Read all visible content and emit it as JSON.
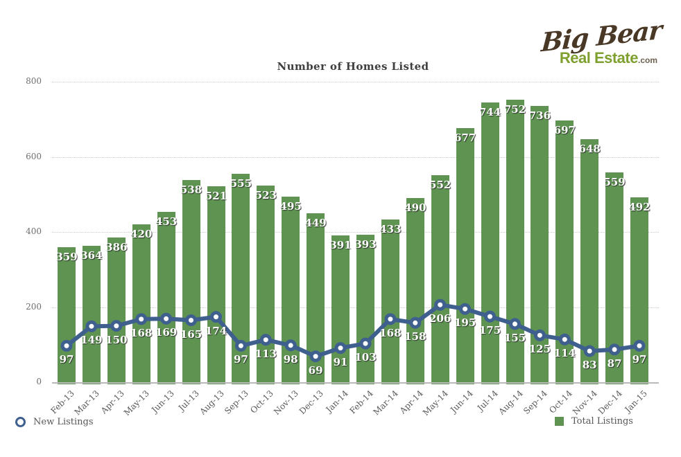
{
  "logo": {
    "name": "Big Bear",
    "sub": "Real Estate",
    "suffix": ".com",
    "name_color": "#4a3826",
    "sub_color": "#7fa02f"
  },
  "chart_data": {
    "type": "combo-bar-line",
    "title": "Number of Homes Listed",
    "categories": [
      "Feb-13",
      "Mar-13",
      "Apr-13",
      "May-13",
      "Jun-13",
      "Jul-13",
      "Aug-13",
      "Sep-13",
      "Oct-13",
      "Nov-13",
      "Dec-13",
      "Jan-14",
      "Feb-14",
      "Mar-14",
      "Apr-14",
      "May-14",
      "Jun-14",
      "Jul-14",
      "Aug-14",
      "Sep-14",
      "Oct-14",
      "Nov-14",
      "Dec-14",
      "Jan-15"
    ],
    "series": [
      {
        "name": "Total Listings",
        "type": "bar",
        "color": "#5e9351",
        "values": [
          359,
          364,
          386,
          420,
          453,
          538,
          521,
          555,
          523,
          495,
          449,
          391,
          393,
          433,
          490,
          552,
          677,
          744,
          752,
          736,
          697,
          648,
          559,
          492
        ]
      },
      {
        "name": "New Listings",
        "type": "line",
        "color": "#3f608e",
        "marker": "circle-white-core",
        "values": [
          97,
          149,
          150,
          168,
          169,
          165,
          174,
          97,
          113,
          98,
          69,
          91,
          103,
          168,
          158,
          206,
          195,
          175,
          155,
          125,
          114,
          83,
          87,
          97
        ]
      }
    ],
    "xlabel": "",
    "ylabel": "",
    "ylim": [
      0,
      800
    ],
    "yticks": [
      0,
      200,
      400,
      600,
      800
    ],
    "grid": "horizontal-dotted",
    "data_labels": true,
    "legend_position": "bottom"
  },
  "legend": {
    "new_listings": "New Listings",
    "total_listings": "Total Listings"
  }
}
